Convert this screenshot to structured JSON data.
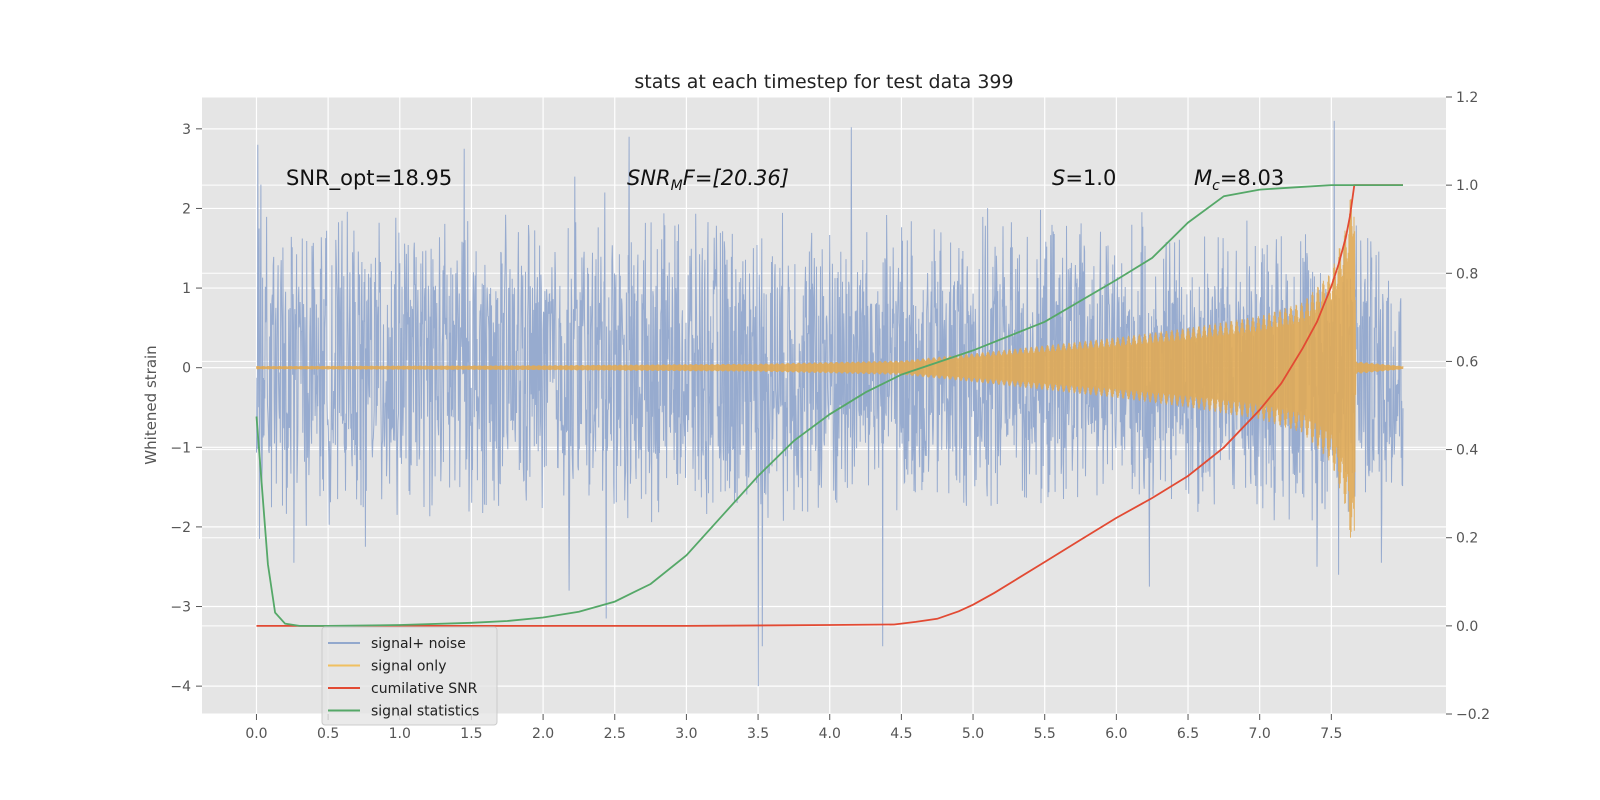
{
  "chart_data": {
    "type": "line",
    "title": "stats at each timestep for test data 399",
    "ylabel": "Whitened strain",
    "xlim": [
      -0.38,
      8.3
    ],
    "ylim": [
      -4.35,
      3.4
    ],
    "ylim_right": [
      -0.2,
      1.2
    ],
    "xticks": [
      0.0,
      0.5,
      1.0,
      1.5,
      2.0,
      2.5,
      3.0,
      3.5,
      4.0,
      4.5,
      5.0,
      5.5,
      6.0,
      6.5,
      7.0,
      7.5
    ],
    "xtick_labels": [
      "0.0",
      "0.5",
      "1.0",
      "1.5",
      "2.0",
      "2.5",
      "3.0",
      "3.5",
      "4.0",
      "4.5",
      "5.0",
      "5.5",
      "6.0",
      "6.5",
      "7.0",
      "7.5"
    ],
    "yticks": [
      3,
      2,
      1,
      0,
      -1,
      -2,
      -3,
      -4
    ],
    "ytick_labels": [
      "3",
      "2",
      "1",
      "0",
      "−1",
      "−2",
      "−3",
      "−4"
    ],
    "yticks_right": [
      1.2,
      1.0,
      0.8,
      0.6,
      0.4,
      0.2,
      0.0,
      -0.2
    ],
    "ytick_labels_right": [
      "1.2",
      "1.0",
      "0.8",
      "0.6",
      "0.4",
      "0.2",
      "0.0",
      "−0.2"
    ],
    "grid": true,
    "legend_position": "lower-left",
    "annotations": [
      {
        "parts": [
          "SNR_opt=18.95"
        ],
        "italic": [
          false
        ],
        "sub": [
          false
        ]
      },
      {
        "parts": [
          "SNR",
          "M",
          "F=[20.36]"
        ],
        "italic": [
          true,
          true,
          true
        ],
        "sub": [
          false,
          true,
          false
        ]
      },
      {
        "parts": [
          "S",
          "=1.0"
        ],
        "italic": [
          true,
          false
        ],
        "sub": [
          false,
          false
        ]
      },
      {
        "parts": [
          "M",
          "c",
          "=8.03"
        ],
        "italic": [
          true,
          true,
          false
        ],
        "sub": [
          false,
          true,
          false
        ]
      }
    ],
    "noise_series": {
      "name": "signal+ noise",
      "color": "#92a8cd",
      "x_range": [
        0.0,
        8.0
      ],
      "base_amplitude": 1.2,
      "spikes": [
        {
          "x": 0.01,
          "y": 2.8
        },
        {
          "x": 0.02,
          "y": -2.15
        },
        {
          "x": 0.03,
          "y": 2.3
        },
        {
          "x": 0.26,
          "y": -2.45
        },
        {
          "x": 0.76,
          "y": -2.25
        },
        {
          "x": 1.45,
          "y": 2.75
        },
        {
          "x": 2.22,
          "y": 2.4
        },
        {
          "x": 2.18,
          "y": -2.8
        },
        {
          "x": 2.43,
          "y": 2.2
        },
        {
          "x": 2.44,
          "y": -3.15
        },
        {
          "x": 2.6,
          "y": 2.9
        },
        {
          "x": 3.5,
          "y": -4.0
        },
        {
          "x": 3.53,
          "y": -3.5
        },
        {
          "x": 4.15,
          "y": 3.02
        },
        {
          "x": 4.37,
          "y": -3.5
        },
        {
          "x": 6.23,
          "y": -2.75
        },
        {
          "x": 7.52,
          "y": 3.1
        },
        {
          "x": 7.55,
          "y": -2.6
        },
        {
          "x": 7.4,
          "y": -2.5
        },
        {
          "x": 7.85,
          "y": -2.45
        }
      ]
    },
    "signal_series": {
      "name": "signal only",
      "color": "#e0aa55",
      "envelope": [
        [
          0.0,
          0.02
        ],
        [
          2.0,
          0.03
        ],
        [
          3.5,
          0.05
        ],
        [
          4.5,
          0.09
        ],
        [
          5.0,
          0.18
        ],
        [
          5.5,
          0.28
        ],
        [
          6.0,
          0.38
        ],
        [
          6.5,
          0.5
        ],
        [
          7.0,
          0.65
        ],
        [
          7.3,
          0.82
        ],
        [
          7.5,
          1.2
        ],
        [
          7.6,
          1.75
        ],
        [
          7.66,
          2.45
        ],
        [
          7.67,
          0.08
        ],
        [
          8.0,
          0.02
        ]
      ]
    },
    "series": [
      {
        "name": "cumilative SNR",
        "color": "#e24a33",
        "axis": "right",
        "x": [
          0.0,
          0.5,
          1.0,
          2.0,
          3.0,
          4.0,
          4.45,
          4.6,
          4.75,
          4.9,
          5.0,
          5.15,
          5.3,
          5.5,
          5.75,
          6.0,
          6.25,
          6.5,
          6.75,
          7.0,
          7.15,
          7.3,
          7.4,
          7.5,
          7.55,
          7.6,
          7.63,
          7.66,
          8.0
        ],
        "y": [
          0.0,
          0.0,
          0.0,
          0.0,
          0.0,
          0.002,
          0.003,
          0.009,
          0.016,
          0.033,
          0.048,
          0.075,
          0.105,
          0.145,
          0.195,
          0.245,
          0.29,
          0.34,
          0.405,
          0.49,
          0.55,
          0.63,
          0.69,
          0.77,
          0.82,
          0.88,
          0.93,
          1.0,
          1.0
        ]
      },
      {
        "name": "signal statistics",
        "color": "#55a868",
        "axis": "right",
        "x": [
          0.0,
          0.08,
          0.13,
          0.2,
          0.3,
          0.5,
          1.0,
          1.5,
          1.75,
          2.0,
          2.25,
          2.5,
          2.75,
          3.0,
          3.25,
          3.5,
          3.75,
          4.0,
          4.25,
          4.5,
          5.0,
          5.5,
          6.0,
          6.25,
          6.5,
          6.75,
          7.0,
          7.25,
          7.5,
          8.0
        ],
        "y": [
          0.475,
          0.14,
          0.03,
          0.005,
          0.0,
          0.0,
          0.002,
          0.007,
          0.011,
          0.019,
          0.032,
          0.055,
          0.095,
          0.16,
          0.25,
          0.34,
          0.42,
          0.48,
          0.53,
          0.57,
          0.625,
          0.69,
          0.785,
          0.835,
          0.915,
          0.975,
          0.99,
          0.995,
          1.0,
          1.0
        ]
      }
    ],
    "legend": [
      {
        "label": "signal+ noise",
        "color": "#92a8cd"
      },
      {
        "label": "signal only",
        "color": "#f0c060"
      },
      {
        "label": "cumilative SNR",
        "color": "#e24a33"
      },
      {
        "label": "signal statistics",
        "color": "#55a868"
      }
    ]
  }
}
